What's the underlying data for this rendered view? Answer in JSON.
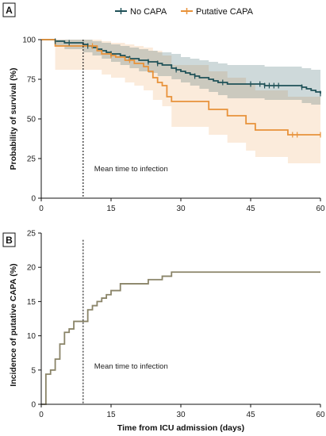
{
  "figure": {
    "legend": {
      "items": [
        {
          "label": "No CAPA",
          "color": "#1f5158"
        },
        {
          "label": "Putative CAPA",
          "color": "#e8923a"
        }
      ],
      "placement": "top-center"
    },
    "xlabel": "Time from ICU admission (days)"
  },
  "chart_data": [
    {
      "panel": "A",
      "type": "line",
      "subtype": "kaplan-meier survival with confidence bands",
      "ylabel": "Probability of survival (%)",
      "xlim": [
        0,
        60
      ],
      "ylim": [
        0,
        100
      ],
      "xticks": [
        0,
        15,
        30,
        45,
        60
      ],
      "yticks": [
        0,
        25,
        50,
        75,
        100
      ],
      "annotation": {
        "text": "Mean time to infection",
        "x": 9
      },
      "series": [
        {
          "name": "No CAPA",
          "color": "#1f5158",
          "steps": [
            [
              0,
              100
            ],
            [
              3,
              99
            ],
            [
              5,
              98
            ],
            [
              9,
              97
            ],
            [
              10,
              96
            ],
            [
              11,
              95
            ],
            [
              12,
              94
            ],
            [
              13,
              93
            ],
            [
              14,
              92
            ],
            [
              15,
              91
            ],
            [
              17,
              90
            ],
            [
              18,
              89
            ],
            [
              19,
              88
            ],
            [
              21,
              87
            ],
            [
              23,
              86
            ],
            [
              25,
              85
            ],
            [
              26,
              84
            ],
            [
              28,
              82
            ],
            [
              29,
              81
            ],
            [
              30,
              80
            ],
            [
              31,
              79
            ],
            [
              32,
              78
            ],
            [
              33,
              77
            ],
            [
              34,
              76
            ],
            [
              36,
              75
            ],
            [
              37,
              74
            ],
            [
              38,
              73
            ],
            [
              40,
              72
            ],
            [
              48,
              71
            ],
            [
              56,
              70
            ],
            [
              57,
              69
            ],
            [
              58,
              68
            ],
            [
              59,
              67
            ],
            [
              60,
              66
            ]
          ],
          "censor_x": [
            3,
            6,
            10,
            15,
            19,
            23,
            25,
            29,
            33,
            39,
            45,
            47,
            48,
            49,
            50,
            51,
            56,
            60
          ],
          "ci_upper": [
            [
              0,
              100
            ],
            [
              3,
              100
            ],
            [
              5,
              100
            ],
            [
              9,
              100
            ],
            [
              11,
              99
            ],
            [
              13,
              98
            ],
            [
              15,
              97
            ],
            [
              17,
              96
            ],
            [
              19,
              95
            ],
            [
              21,
              94
            ],
            [
              23,
              93
            ],
            [
              25,
              92
            ],
            [
              28,
              91
            ],
            [
              30,
              89
            ],
            [
              32,
              88
            ],
            [
              34,
              87
            ],
            [
              36,
              86
            ],
            [
              38,
              85
            ],
            [
              40,
              84
            ],
            [
              48,
              83
            ],
            [
              56,
              82
            ],
            [
              58,
              81
            ],
            [
              60,
              80
            ]
          ],
          "ci_lower": [
            [
              0,
              100
            ],
            [
              3,
              96
            ],
            [
              5,
              94
            ],
            [
              9,
              92
            ],
            [
              11,
              90
            ],
            [
              13,
              88
            ],
            [
              15,
              86
            ],
            [
              17,
              84
            ],
            [
              19,
              82
            ],
            [
              21,
              80
            ],
            [
              23,
              79
            ],
            [
              25,
              77
            ],
            [
              28,
              75
            ],
            [
              30,
              73
            ],
            [
              32,
              71
            ],
            [
              34,
              69
            ],
            [
              36,
              67
            ],
            [
              38,
              65
            ],
            [
              40,
              63
            ],
            [
              48,
              62
            ],
            [
              56,
              60
            ],
            [
              58,
              59
            ],
            [
              60,
              57
            ]
          ]
        },
        {
          "name": "Putative CAPA",
          "color": "#e8923a",
          "steps": [
            [
              0,
              100
            ],
            [
              3,
              96
            ],
            [
              11,
              96
            ],
            [
              12,
              93
            ],
            [
              13,
              91
            ],
            [
              15,
              90
            ],
            [
              16,
              89
            ],
            [
              18,
              87
            ],
            [
              20,
              85
            ],
            [
              22,
              83
            ],
            [
              23,
              80
            ],
            [
              24,
              76
            ],
            [
              25,
              73
            ],
            [
              26,
              71
            ],
            [
              27,
              64
            ],
            [
              28,
              61
            ],
            [
              30,
              61
            ],
            [
              35,
              61
            ],
            [
              36,
              56
            ],
            [
              40,
              52
            ],
            [
              44,
              47
            ],
            [
              46,
              43
            ],
            [
              50,
              43
            ],
            [
              53,
              40
            ],
            [
              60,
              40
            ]
          ],
          "censor_x": [
            11,
            15,
            19,
            54,
            55,
            60
          ],
          "ci_upper": [
            [
              0,
              100
            ],
            [
              3,
              100
            ],
            [
              11,
              100
            ],
            [
              13,
              99
            ],
            [
              15,
              98
            ],
            [
              18,
              97
            ],
            [
              20,
              96
            ],
            [
              22,
              95
            ],
            [
              24,
              93
            ],
            [
              26,
              90
            ],
            [
              28,
              84
            ],
            [
              30,
              84
            ],
            [
              35,
              84
            ],
            [
              36,
              80
            ],
            [
              40,
              76
            ],
            [
              44,
              72
            ],
            [
              46,
              68
            ],
            [
              50,
              68
            ],
            [
              53,
              64
            ],
            [
              60,
              64
            ]
          ],
          "ci_lower": [
            [
              0,
              100
            ],
            [
              3,
              81
            ],
            [
              11,
              81
            ],
            [
              13,
              78
            ],
            [
              15,
              76
            ],
            [
              18,
              73
            ],
            [
              20,
              71
            ],
            [
              22,
              68
            ],
            [
              24,
              62
            ],
            [
              26,
              58
            ],
            [
              28,
              45
            ],
            [
              30,
              45
            ],
            [
              35,
              45
            ],
            [
              36,
              40
            ],
            [
              40,
              35
            ],
            [
              44,
              30
            ],
            [
              46,
              26
            ],
            [
              50,
              26
            ],
            [
              53,
              22
            ],
            [
              60,
              22
            ]
          ]
        }
      ]
    },
    {
      "panel": "B",
      "type": "line",
      "subtype": "cumulative incidence step curve",
      "ylabel": "Incidence of  putative CAPA (%)",
      "xlim": [
        0,
        60
      ],
      "ylim": [
        0,
        25
      ],
      "xticks": [
        0,
        15,
        30,
        45,
        60
      ],
      "yticks": [
        0,
        5,
        10,
        15,
        20,
        25
      ],
      "annotation": {
        "text": "Mean time to infection",
        "x": 9
      },
      "series": [
        {
          "color": "#8a8468",
          "steps": [
            [
              0,
              0
            ],
            [
              1,
              4.4
            ],
            [
              2,
              5.0
            ],
            [
              3,
              6.6
            ],
            [
              4,
              8.8
            ],
            [
              5,
              10.5
            ],
            [
              6,
              11.0
            ],
            [
              7,
              12.1
            ],
            [
              10,
              13.8
            ],
            [
              11,
              14.4
            ],
            [
              12,
              15.0
            ],
            [
              13,
              15.5
            ],
            [
              14,
              16.0
            ],
            [
              15,
              16.6
            ],
            [
              17,
              17.6
            ],
            [
              23,
              18.2
            ],
            [
              26,
              18.7
            ],
            [
              28,
              19.3
            ],
            [
              60,
              19.3
            ]
          ]
        }
      ]
    }
  ]
}
